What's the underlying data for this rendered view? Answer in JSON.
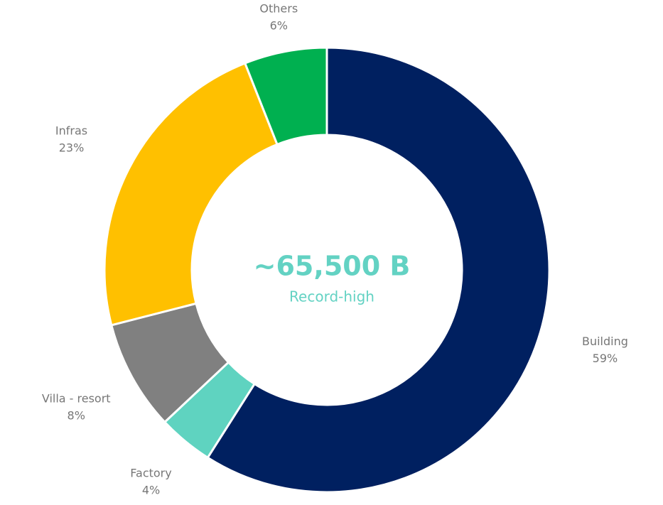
{
  "chart_data": {
    "type": "pie",
    "donut": true,
    "center_title": "~65,500 B",
    "center_subtitle": "Record-high",
    "categories": [
      "Building",
      "Factory",
      "Villa - resort",
      "Infras",
      "Others"
    ],
    "values": [
      59,
      4,
      8,
      23,
      6
    ],
    "value_labels": [
      "59%",
      "4%",
      "8%",
      "23%",
      "6%"
    ],
    "colors": [
      "#002060",
      "#5fd3c0",
      "#808080",
      "#ffc000",
      "#00b050"
    ]
  }
}
